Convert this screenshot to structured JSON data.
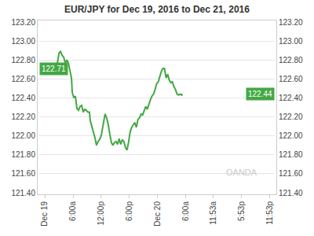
{
  "chart_data": {
    "type": "line",
    "title": "EUR/JPY for Dec 19, 2016 to Dec 21, 2016",
    "x": [
      0,
      1,
      1.67,
      2,
      2.33,
      2.67,
      3,
      3.33,
      3.67,
      4,
      4.33,
      4.67,
      5,
      5.33,
      5.67,
      5.83,
      6.17,
      6.5,
      6.83,
      7.17,
      7.5,
      7.83,
      8.17,
      8.5,
      8.83,
      9.17,
      9.5,
      9.67,
      10,
      10.33,
      10.67,
      11,
      11.33,
      11.67,
      12,
      12.33,
      12.5,
      12.83,
      13.17,
      13.5,
      13.83,
      14.17,
      14.5,
      14.83,
      15.17,
      15.5,
      15.83,
      16.17,
      16.5,
      16.83,
      17.17,
      17.5,
      17.83,
      18.17,
      18.5,
      18.83,
      19.17,
      19.5,
      19.83,
      20.17,
      20.5,
      20.83,
      21.17,
      21.5,
      21.83,
      22.17,
      22.5,
      22.83,
      23.17,
      23.5,
      23.83,
      24.17,
      24.5,
      24.83,
      25.17,
      25.5,
      25.83,
      26.17,
      26.5,
      26.83,
      27.17,
      27.5,
      27.83,
      28.17,
      28.5,
      28.83,
      29.17,
      29.33
    ],
    "values": [
      122.68,
      122.69,
      122.71,
      122.7,
      122.76,
      122.77,
      122.87,
      122.89,
      122.85,
      122.83,
      122.77,
      122.8,
      122.77,
      122.68,
      122.61,
      122.46,
      122.4,
      122.42,
      122.29,
      122.27,
      122.31,
      122.32,
      122.25,
      122.28,
      122.27,
      122.25,
      122.25,
      122.16,
      122.09,
      122.04,
      121.98,
      121.9,
      121.94,
      121.96,
      122.0,
      122.09,
      122.17,
      122.23,
      122.19,
      122.12,
      122.02,
      121.93,
      121.9,
      121.93,
      121.94,
      121.91,
      121.97,
      121.91,
      121.96,
      121.94,
      121.88,
      121.85,
      121.93,
      122.04,
      122.09,
      122.12,
      122.14,
      122.09,
      122.17,
      122.19,
      122.23,
      122.22,
      122.27,
      122.31,
      122.28,
      122.34,
      122.38,
      122.42,
      122.44,
      122.49,
      122.55,
      122.57,
      122.62,
      122.68,
      122.71,
      122.71,
      122.61,
      122.65,
      122.59,
      122.56,
      122.57,
      122.52,
      122.49,
      122.44,
      122.43,
      122.44,
      122.43,
      122.44
    ],
    "color": "#43a843",
    "xlim": [
      -1.2,
      49
    ],
    "xticks": [
      {
        "value": 0,
        "label": "Dec 19"
      },
      {
        "value": 6,
        "label": "6:00a"
      },
      {
        "value": 12,
        "label": "12:00p"
      },
      {
        "value": 18,
        "label": "6:00p"
      },
      {
        "value": 24,
        "label": "Dec 20"
      },
      {
        "value": 30,
        "label": "6:00a"
      },
      {
        "value": 35.88,
        "label": "11:53a"
      },
      {
        "value": 41.88,
        "label": "5:53p"
      },
      {
        "value": 47.88,
        "label": "11:53p"
      }
    ],
    "ylim": [
      121.4,
      123.2
    ],
    "yticks": [
      {
        "value": 121.4,
        "label": "121.40"
      },
      {
        "value": 121.6,
        "label": "121.60"
      },
      {
        "value": 121.8,
        "label": "121.80"
      },
      {
        "value": 122.0,
        "label": "122.00"
      },
      {
        "value": 122.2,
        "label": "122.20"
      },
      {
        "value": 122.4,
        "label": "122.40"
      },
      {
        "value": 122.6,
        "label": "122.60"
      },
      {
        "value": 122.8,
        "label": "122.80"
      },
      {
        "value": 123.0,
        "label": "123.00"
      },
      {
        "value": 123.2,
        "label": "123.20"
      }
    ],
    "grid": "y",
    "annotations": [
      {
        "text": "122.71",
        "y": 122.71
      },
      {
        "text": "122.44",
        "y": 122.44
      }
    ],
    "watermark": "OANDA"
  }
}
